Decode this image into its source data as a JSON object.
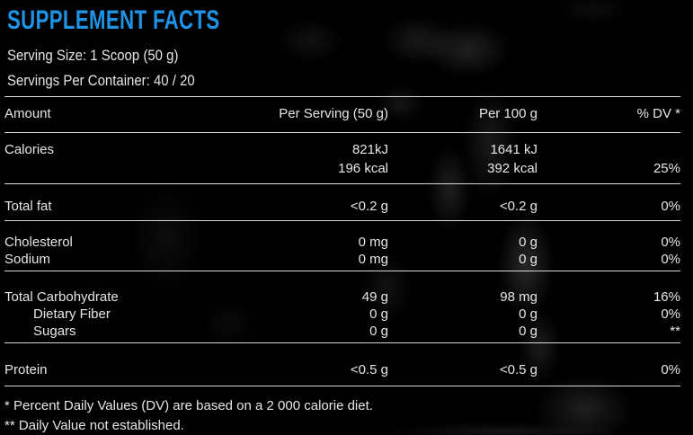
{
  "theme": {
    "background": "#000000",
    "text": "#e6e6e6",
    "accent_blue": "#1f93e6",
    "separator_line": "#d8d8d8"
  },
  "header": {
    "title": "SUPPLEMENT FACTS",
    "serving_size": "Serving Size: 1 Scoop (50 g)",
    "servings_per_container": "Servings Per Container: 40 / 20"
  },
  "table": {
    "columns": {
      "amount": "Amount",
      "per_serving": "Per Serving (50 g)",
      "per_100g": "Per 100 g",
      "dv": "% DV *"
    },
    "rows": [
      {
        "label": "Calories",
        "per_serving": "821kJ\n196 kcal",
        "per_100g": "1641 kJ\n392 kcal",
        "dv": "\n25%"
      },
      {
        "label": "Total fat",
        "per_serving": "<0.2 g",
        "per_100g": "<0.2 g",
        "dv": "0%"
      },
      {
        "label": "Cholesterol",
        "per_serving": "0 mg",
        "per_100g": "0 g",
        "dv": "0%"
      },
      {
        "label": "Sodium",
        "per_serving": "0 mg",
        "per_100g": "0 g",
        "dv": "0%"
      },
      {
        "label": "Total Carbohydrate",
        "per_serving": "49 g",
        "per_100g": "98 mg",
        "dv": "16%"
      },
      {
        "label": "Dietary Fiber",
        "per_serving": "0 g",
        "per_100g": "0 g",
        "dv": "0%"
      },
      {
        "label": "Sugars",
        "per_serving": "0 g",
        "per_100g": "0 g",
        "dv": "**"
      },
      {
        "label": "Protein",
        "per_serving": "<0.5 g",
        "per_100g": "<0.5 g",
        "dv": "0%"
      }
    ]
  },
  "footnotes": [
    "* Percent Daily Values (DV) are based on a 2 000 calorie diet.",
    "** Daily Value not established."
  ]
}
